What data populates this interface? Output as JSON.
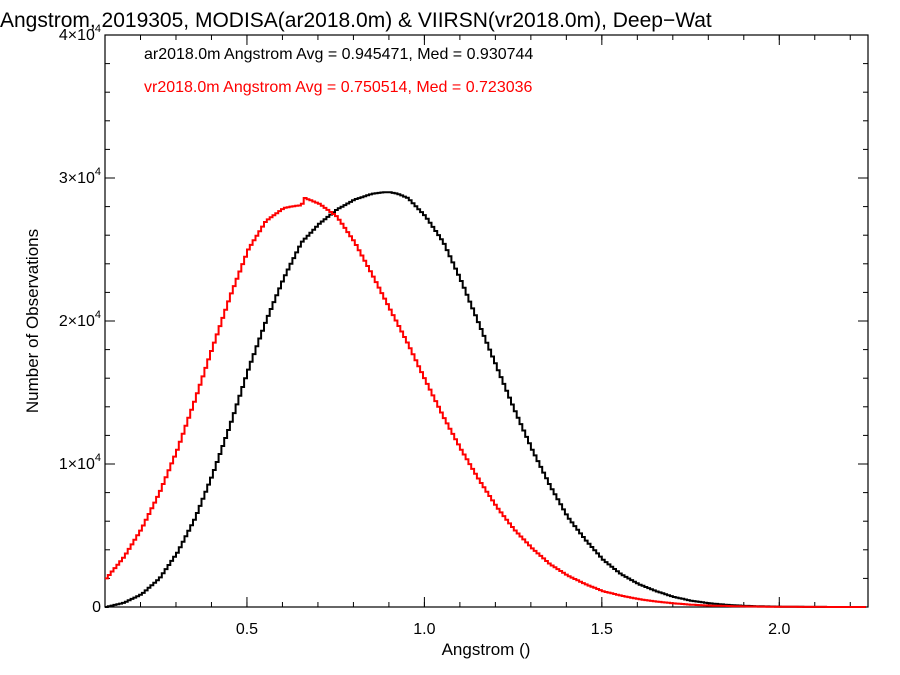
{
  "chart_data": {
    "type": "line",
    "title": "Angstrom, 2019305, MODISA(ar2018.0m) & VIIRSN(vr2018.0m), Deep−Wat",
    "xlabel": "Angstrom ()",
    "ylabel": "Number of Observations",
    "xlim": [
      0.1,
      2.25
    ],
    "ylim": [
      0,
      40000
    ],
    "x_ticks": [
      {
        "value": 0.5,
        "label": "0.5"
      },
      {
        "value": 1.0,
        "label": "1.0"
      },
      {
        "value": 1.5,
        "label": "1.5"
      },
      {
        "value": 2.0,
        "label": "2.0"
      }
    ],
    "y_ticks": [
      {
        "value": 0,
        "label": "0",
        "exp": ""
      },
      {
        "value": 10000,
        "label": "1×10",
        "exp": "4"
      },
      {
        "value": 20000,
        "label": "2×10",
        "exp": "4"
      },
      {
        "value": 30000,
        "label": "3×10",
        "exp": "4"
      },
      {
        "value": 40000,
        "label": "4×10",
        "exp": "4"
      }
    ],
    "grid": false,
    "legend": "top-left",
    "series": [
      {
        "label": "ar2018.0m Angstrom Avg = 0.945471, Med = 0.930744",
        "color": "#000000",
        "x": [
          0.1,
          0.15,
          0.2,
          0.25,
          0.3,
          0.35,
          0.4,
          0.45,
          0.5,
          0.55,
          0.6,
          0.65,
          0.7,
          0.75,
          0.8,
          0.85,
          0.88,
          0.9,
          0.92,
          0.95,
          1.0,
          1.05,
          1.1,
          1.15,
          1.2,
          1.25,
          1.3,
          1.35,
          1.4,
          1.45,
          1.5,
          1.55,
          1.6,
          1.65,
          1.7,
          1.75,
          1.8,
          1.85,
          1.9,
          1.95,
          2.0,
          2.05,
          2.1,
          2.15,
          2.2,
          2.25
        ],
        "y": [
          0,
          300,
          900,
          2000,
          3800,
          6200,
          9300,
          12800,
          16600,
          20000,
          23000,
          25500,
          26800,
          27800,
          28500,
          28900,
          29000,
          29000,
          28900,
          28600,
          27300,
          25500,
          22800,
          19800,
          16800,
          13800,
          11000,
          8500,
          6300,
          4700,
          3300,
          2300,
          1600,
          1100,
          700,
          430,
          260,
          150,
          80,
          45,
          25,
          12,
          6,
          2,
          0,
          0
        ]
      },
      {
        "label": "vr2018.0m Angstrom Avg = 0.750514, Med = 0.723036",
        "color": "#ff0000",
        "x": [
          0.1,
          0.15,
          0.2,
          0.25,
          0.3,
          0.35,
          0.4,
          0.45,
          0.5,
          0.55,
          0.6,
          0.62,
          0.65,
          0.66,
          0.7,
          0.75,
          0.8,
          0.85,
          0.9,
          0.95,
          1.0,
          1.05,
          1.1,
          1.15,
          1.2,
          1.25,
          1.3,
          1.35,
          1.4,
          1.45,
          1.5,
          1.55,
          1.6,
          1.65,
          1.7,
          1.75,
          1.8,
          1.9,
          2.0,
          2.1,
          2.2,
          2.25
        ],
        "y": [
          2000,
          3500,
          5500,
          8000,
          11000,
          14500,
          18200,
          21800,
          25000,
          27000,
          27900,
          28000,
          28100,
          28600,
          28200,
          27300,
          25500,
          23200,
          20800,
          18400,
          15800,
          13300,
          11000,
          8900,
          7000,
          5400,
          4100,
          3000,
          2200,
          1600,
          1100,
          800,
          550,
          380,
          250,
          160,
          100,
          40,
          15,
          5,
          0,
          0
        ]
      }
    ]
  }
}
